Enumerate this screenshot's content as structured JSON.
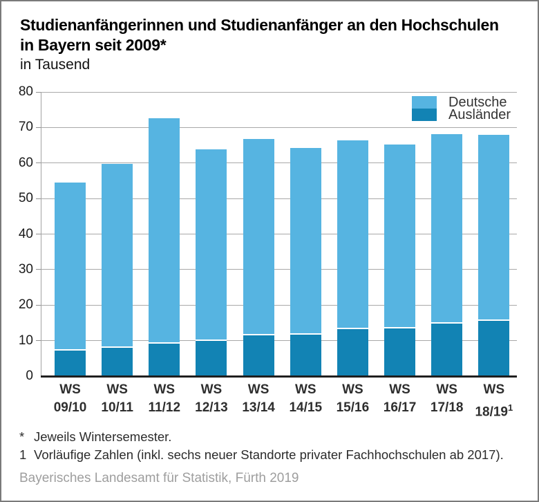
{
  "header": {
    "title_line1": "Studienanfängerinnen und Studienanfänger an den Hochschulen",
    "title_line2": "in Bayern seit 2009*",
    "subtitle": "in Tausend"
  },
  "legend": {
    "items": [
      {
        "label": "Deutsche",
        "color": "#56B4E1"
      },
      {
        "label": "Ausländer",
        "color": "#1283B4"
      }
    ]
  },
  "footnotes": [
    {
      "marker": "*",
      "text": "Jeweils Wintersemester."
    },
    {
      "marker": "1",
      "text": "Vorläufige Zahlen (inkl. sechs neuer Standorte privater Fachhochschulen ab 2017)."
    }
  ],
  "source": "Bayerisches Landesamt für Statistik, Fürth 2019",
  "chart_data": {
    "type": "bar",
    "stacked": true,
    "title": "Studienanfängerinnen und Studienanfänger an den Hochschulen in Bayern seit 2009*",
    "subtitle": "in Tausend",
    "ylabel": "in Tausend",
    "xlabel": "Wintersemester",
    "ylim": [
      0,
      80
    ],
    "ytick_step": 10,
    "grid": true,
    "legend_position": "top-right",
    "categories": [
      {
        "line1": "WS",
        "line2": "09/10",
        "sup": ""
      },
      {
        "line1": "WS",
        "line2": "10/11",
        "sup": ""
      },
      {
        "line1": "WS",
        "line2": "11/12",
        "sup": ""
      },
      {
        "line1": "WS",
        "line2": "12/13",
        "sup": ""
      },
      {
        "line1": "WS",
        "line2": "13/14",
        "sup": ""
      },
      {
        "line1": "WS",
        "line2": "14/15",
        "sup": ""
      },
      {
        "line1": "WS",
        "line2": "15/16",
        "sup": ""
      },
      {
        "line1": "WS",
        "line2": "16/17",
        "sup": ""
      },
      {
        "line1": "WS",
        "line2": "17/18",
        "sup": ""
      },
      {
        "line1": "WS",
        "line2": "18/19",
        "sup": "1"
      }
    ],
    "series": [
      {
        "name": "Deutsche",
        "color": "#56B4E1",
        "values": [
          47.3,
          51.8,
          63.4,
          53.9,
          55.3,
          52.6,
          53.1,
          51.8,
          53.5,
          52.5
        ]
      },
      {
        "name": "Ausländer",
        "color": "#1283B4",
        "values": [
          7.2,
          8.0,
          9.2,
          10.0,
          11.4,
          11.7,
          13.2,
          13.5,
          14.7,
          15.5
        ]
      }
    ],
    "totals": [
      54.5,
      59.8,
      72.6,
      63.9,
      66.7,
      64.3,
      66.3,
      65.3,
      68.2,
      68.0
    ]
  }
}
